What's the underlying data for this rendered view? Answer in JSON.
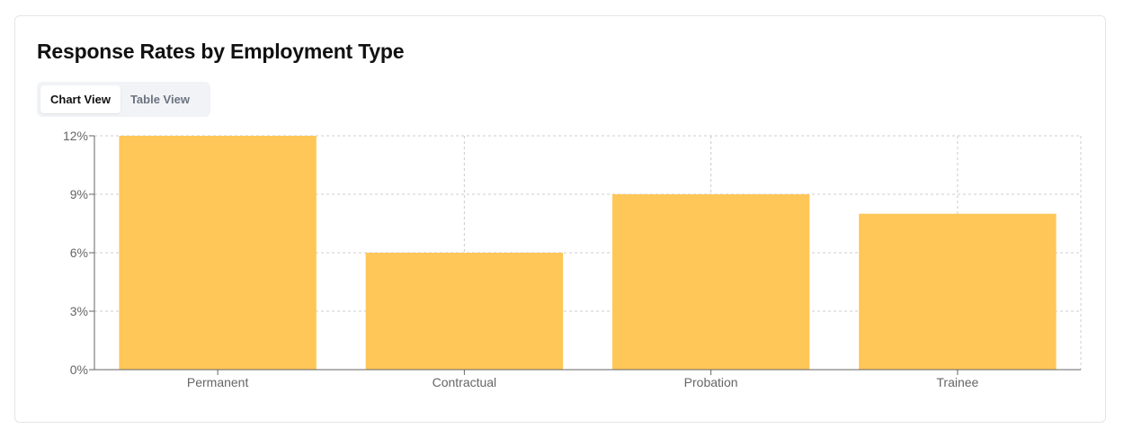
{
  "header": {
    "title": "Response Rates by Employment Type"
  },
  "tabs": [
    {
      "label": "Chart View",
      "active": true
    },
    {
      "label": "Table View",
      "active": false
    }
  ],
  "colors": {
    "bar": "#ffc658",
    "grid": "#cccccc",
    "axis": "#666666"
  },
  "chart_data": {
    "type": "bar",
    "title": "Response Rates by Employment Type",
    "categories": [
      "Permanent",
      "Contractual",
      "Probation",
      "Trainee"
    ],
    "values": [
      12,
      6,
      9,
      8
    ],
    "unit": "%",
    "xlabel": "",
    "ylabel": "",
    "ylim": [
      0,
      12
    ],
    "yticks": [
      "0%",
      "3%",
      "6%",
      "9%",
      "12%"
    ],
    "grid": true,
    "legend": "none"
  }
}
